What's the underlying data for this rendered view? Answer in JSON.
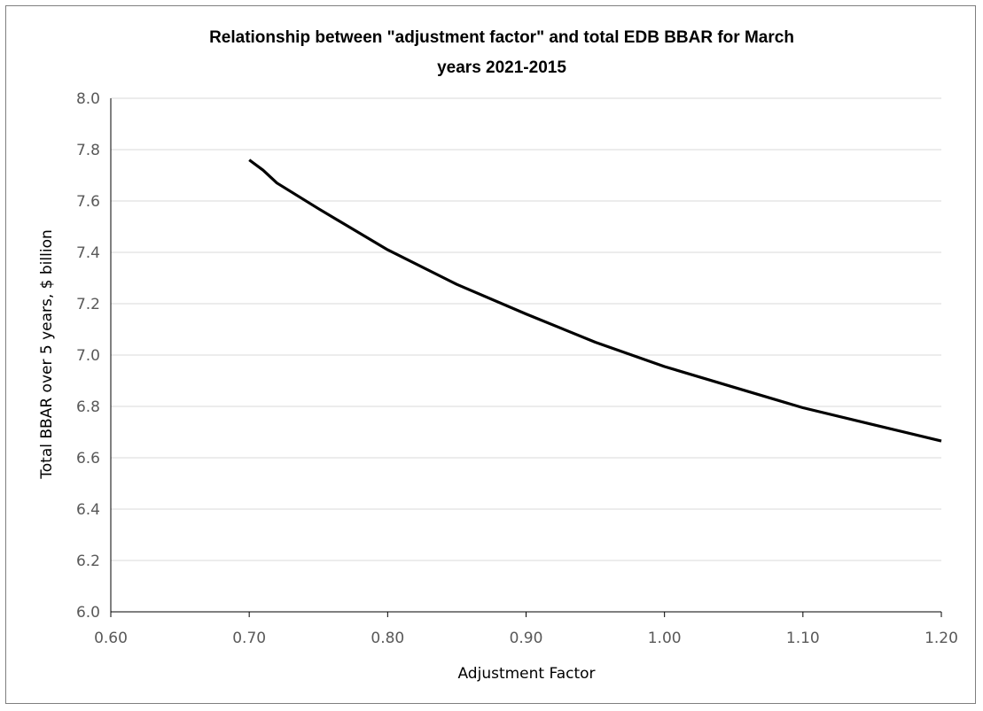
{
  "chart_data": {
    "type": "line",
    "title_lines": [
      "Relationship  between \"adjustment factor\" and total EDB BBAR for March",
      "years 2021-2015"
    ],
    "xlabel": "Adjustment Factor",
    "ylabel": "Total BBAR over 5 years, $ billion",
    "xlim": [
      0.6,
      1.2
    ],
    "ylim": [
      6.0,
      8.0
    ],
    "x_ticks": [
      "0.60",
      "0.70",
      "0.80",
      "0.90",
      "1.00",
      "1.10",
      "1.20"
    ],
    "y_ticks": [
      "6.0",
      "6.2",
      "6.4",
      "6.6",
      "6.8",
      "7.0",
      "7.2",
      "7.4",
      "7.6",
      "7.8",
      "8.0"
    ],
    "grid": {
      "horizontal": true,
      "vertical": false
    },
    "legend": "none",
    "series": [
      {
        "color": "#000000",
        "x": [
          0.7,
          0.71,
          0.72,
          0.75,
          0.8,
          0.85,
          0.9,
          0.95,
          1.0,
          1.05,
          1.1,
          1.15,
          1.2
        ],
        "y": [
          7.76,
          7.72,
          7.67,
          7.57,
          7.41,
          7.275,
          7.16,
          7.05,
          6.955,
          6.875,
          6.795,
          6.73,
          6.665
        ]
      }
    ]
  }
}
